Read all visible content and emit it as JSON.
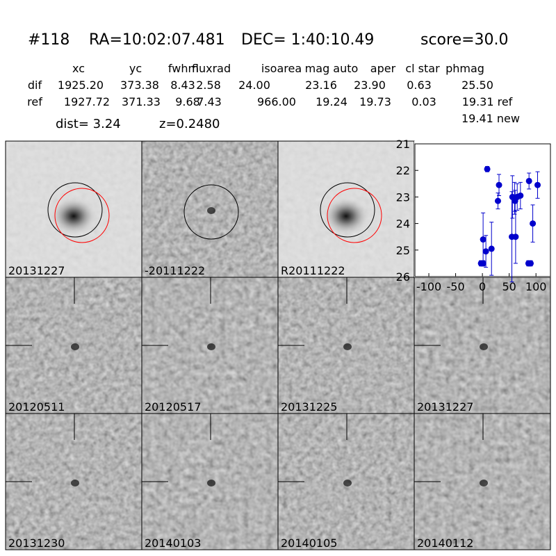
{
  "header": {
    "id": "#118",
    "ra": "RA=10:02:07.481",
    "dec": "DEC= 1:40:10.49",
    "score": "score=30.0"
  },
  "table": {
    "columns": [
      "xc",
      "yc",
      "fwhm",
      "fluxrad",
      "isoarea",
      "mag auto",
      "aper",
      "cl star",
      "phmag"
    ],
    "rows": [
      [
        "dif",
        "1925.20",
        "373.38",
        "8.43",
        "2.58",
        "24.00",
        "23.16",
        "23.90",
        "0.63",
        "25.50"
      ],
      [
        "ref",
        "1927.72",
        "371.33",
        "9.68",
        "7.43",
        "966.00",
        "19.24",
        "19.73",
        "0.03",
        "19.31 ref"
      ]
    ],
    "extra": "19.41 new"
  },
  "dist": "dist=  3.24",
  "z": "z=0.2480",
  "panels": [
    {
      "label": "20131227",
      "color": "#000000"
    },
    {
      "label": "-20111222",
      "color": "#000000"
    },
    {
      "label": "R20111222",
      "color": "#000000"
    },
    {
      "label": "20120511",
      "color": "#000000"
    },
    {
      "label": "20120517",
      "color": "#000000"
    },
    {
      "label": "20131225",
      "color": "#000000"
    },
    {
      "label": "20131227",
      "color": "#ff0000"
    },
    {
      "label": "20131230",
      "color": "#000000"
    },
    {
      "label": "20140103",
      "color": "#000000"
    },
    {
      "label": "20140105",
      "color": "#000000"
    },
    {
      "label": "20140112",
      "color": "#000000"
    }
  ],
  "chart_data": {
    "type": "scatter",
    "color": "#0000cc",
    "y_inverted": true,
    "x": [
      -2.6,
      1.3,
      1.3,
      6.5,
      9,
      17,
      29,
      31,
      55,
      56,
      60,
      61,
      62,
      65,
      71,
      87,
      86,
      90,
      94,
      103
    ],
    "values": [
      25.5,
      25.5,
      24.6,
      25.05,
      21.95,
      24.95,
      23.15,
      22.55,
      24.5,
      23.0,
      23.05,
      23.15,
      24.5,
      23.0,
      22.95,
      22.4,
      25.5,
      25.5,
      24.0,
      22.55
    ],
    "errors": [
      0.1,
      0.1,
      1.0,
      0.6,
      0.1,
      1.0,
      0.3,
      0.4,
      1.7,
      0.8,
      0.6,
      0.4,
      1.0,
      0.5,
      0.5,
      0.3,
      0.1,
      0.1,
      0.7,
      0.5
    ],
    "xlim": [
      -126,
      127
    ],
    "xticks": [
      -100,
      -50,
      0,
      50,
      100
    ],
    "ylim": [
      21,
      26
    ],
    "yticks": [
      21,
      22,
      23,
      24,
      25,
      26
    ]
  }
}
